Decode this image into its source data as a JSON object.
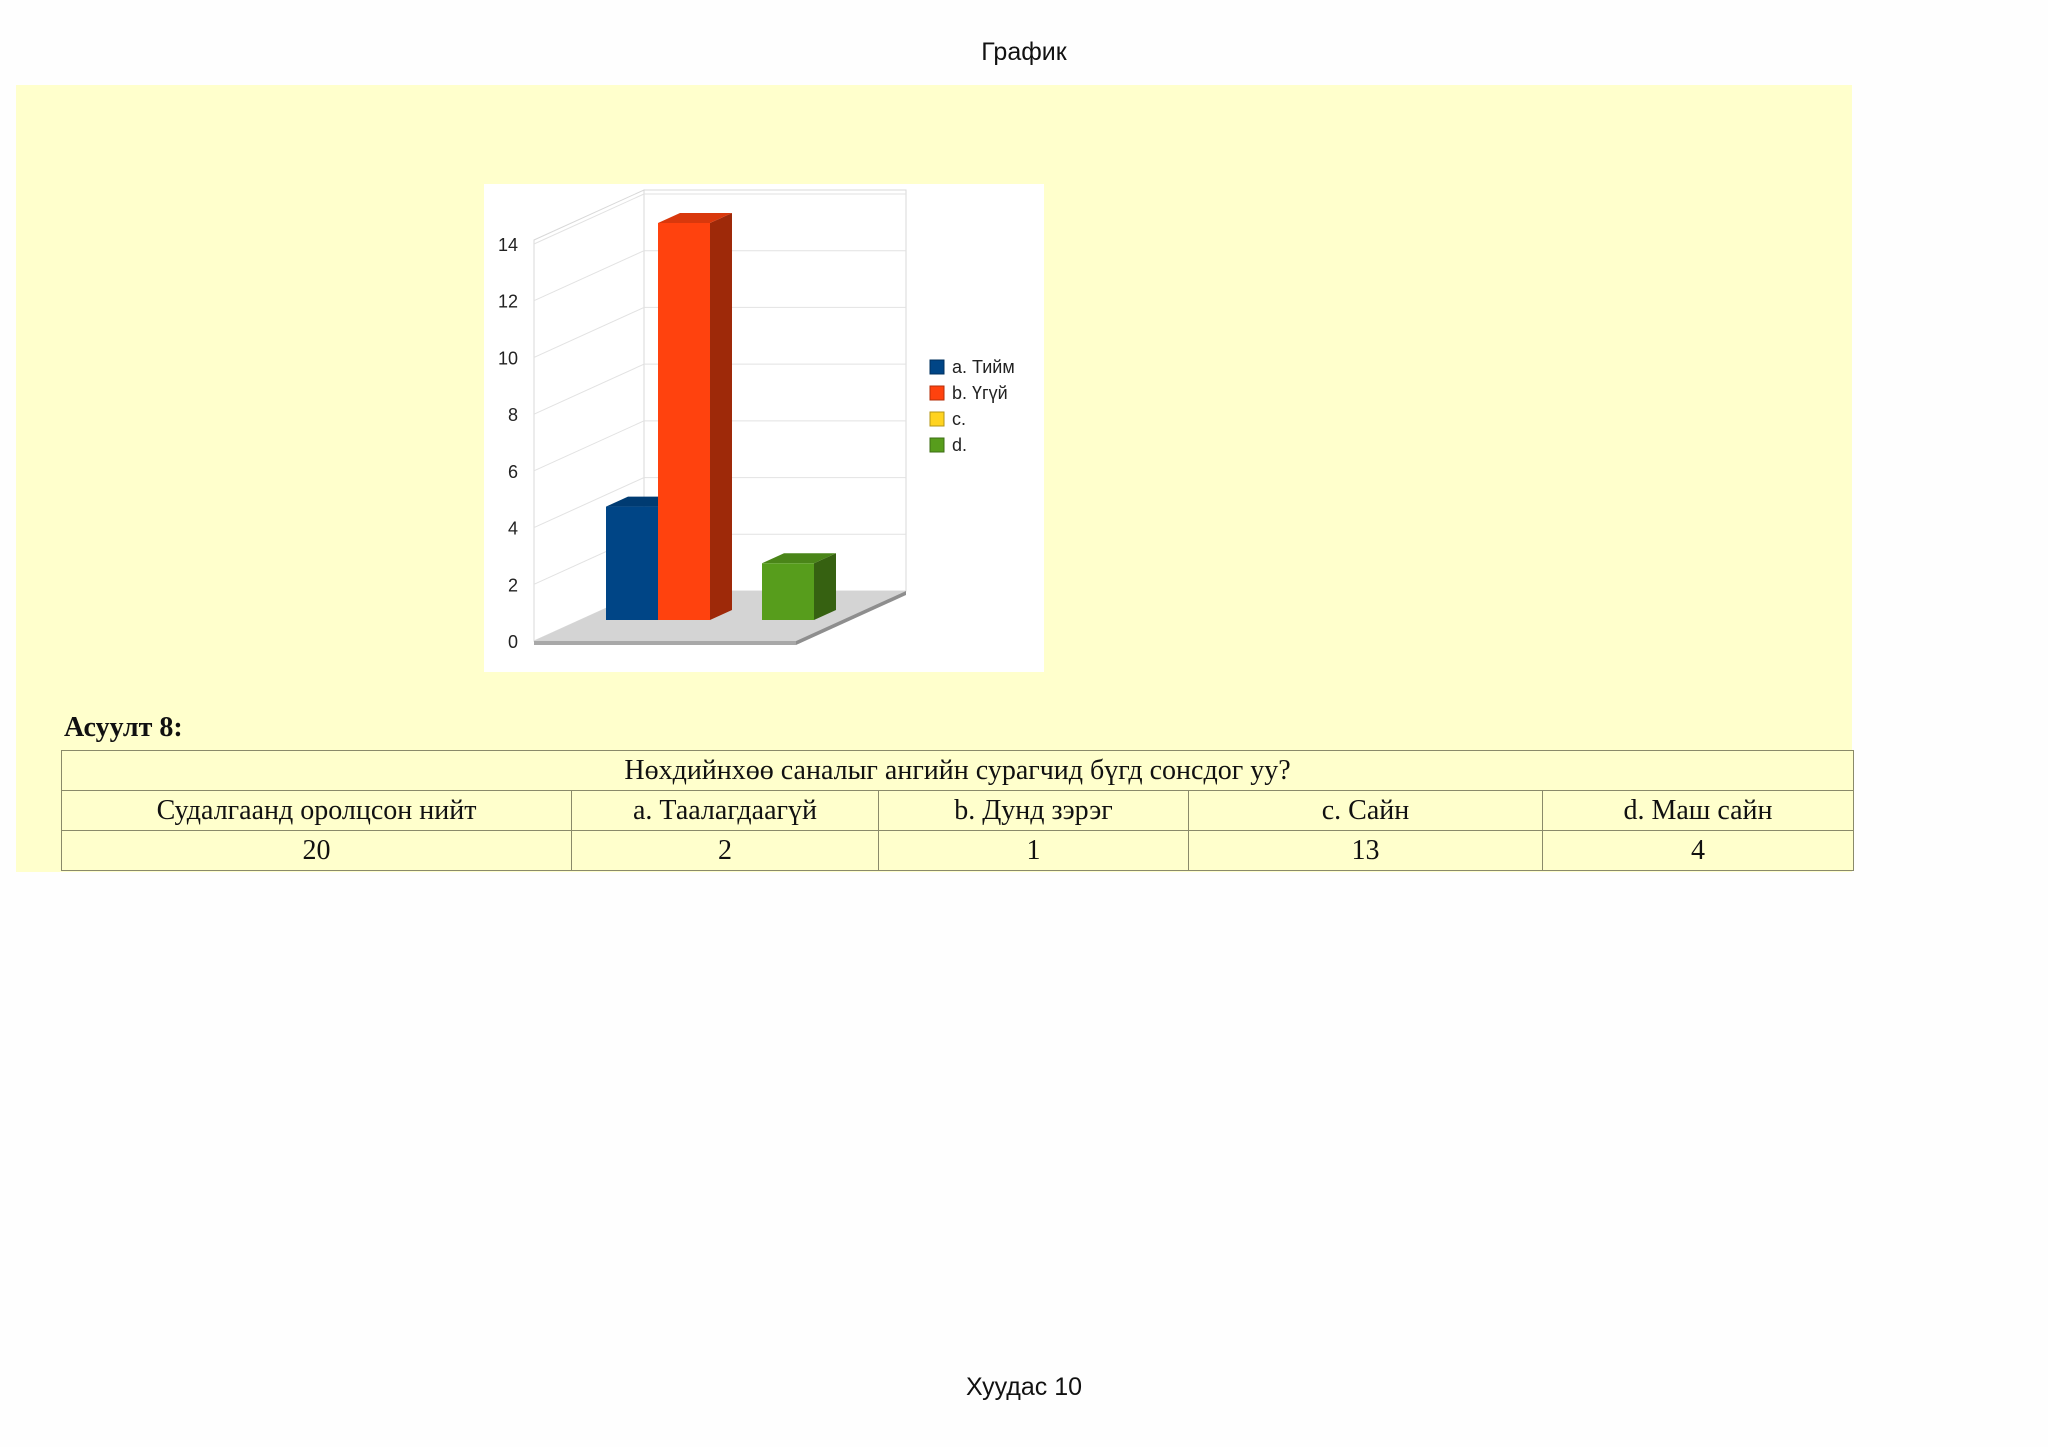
{
  "header": {
    "title": "График"
  },
  "footer": {
    "page_label": "Хуудас 10"
  },
  "question": {
    "label": "Асуулт 8:"
  },
  "table": {
    "title": "Нөхдийнхөө саналыг ангийн сурагчид бүгд сонсдог уу?",
    "columns": [
      "Судалгаанд оролцсон нийт",
      "a. Таалагдаагүй",
      "b. Дунд зэрэг",
      "c. Сайн",
      "d. Маш сайн"
    ],
    "values": [
      "20",
      "2",
      "1",
      "13",
      "4"
    ]
  },
  "chart_data": {
    "type": "bar",
    "title": "",
    "xlabel": "",
    "ylabel": "",
    "ylim": [
      0,
      14
    ],
    "yticks": [
      0,
      2,
      4,
      6,
      8,
      10,
      12,
      14
    ],
    "grid": true,
    "legend_position": "right",
    "series": [
      {
        "name": "a. Тийм",
        "value": 4,
        "color": "#004586"
      },
      {
        "name": "b. Үгүй",
        "value": 14,
        "color": "#ff420e"
      },
      {
        "name": "c.",
        "value": 0,
        "color": "#ffd320"
      },
      {
        "name": "d.",
        "value": 2,
        "color": "#579d1c"
      }
    ]
  }
}
